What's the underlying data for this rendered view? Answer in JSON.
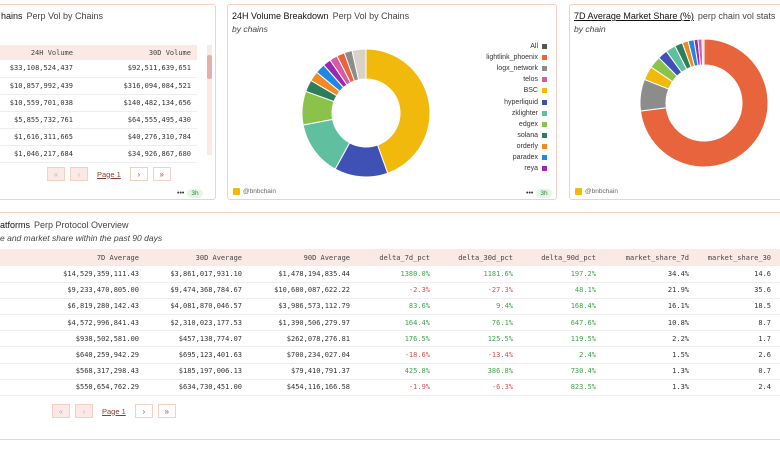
{
  "panel1": {
    "title": "hains",
    "subtitle": "Perp Vol by Chains",
    "columns": [
      "24H Volume",
      "30D Volume"
    ],
    "rows": [
      [
        "$33,108,524,437",
        "$92,511,639,651"
      ],
      [
        "$10,857,992,439",
        "$316,094,084,521"
      ],
      [
        "$10,559,701,038",
        "$140,482,134,656"
      ],
      [
        "$5,855,732,761",
        "$64,555,495,430"
      ],
      [
        "$1,616,311,665",
        "$40,276,310,784"
      ],
      [
        "$1,046,217,684",
        "$34,926,867,680"
      ]
    ],
    "pager": {
      "first": "«",
      "prev": "‹",
      "page": "Page 1",
      "next": "›",
      "last": "»"
    },
    "footer_dots": "•••",
    "footer_time": "3h"
  },
  "panel2": {
    "title": "24H Volume Breakdown",
    "title_sub": "Perp Vol by Chains",
    "subtitle": "by chains",
    "legend": [
      {
        "label": "All",
        "color": "#555555"
      },
      {
        "label": "lightlink_phoenix",
        "color": "#e8643c"
      },
      {
        "label": "logx_network",
        "color": "#8c8c8c"
      },
      {
        "label": "telos",
        "color": "#d65aa8"
      },
      {
        "label": "BSC",
        "color": "#f0b90b"
      },
      {
        "label": "hyperliquid",
        "color": "#3f51b5"
      },
      {
        "label": "zklighter",
        "color": "#5fbf9f"
      },
      {
        "label": "edgex",
        "color": "#8bc34a"
      },
      {
        "label": "solana",
        "color": "#2e7d5b"
      },
      {
        "label": "orderly",
        "color": "#f08a24"
      },
      {
        "label": "paradex",
        "color": "#1e88e5"
      },
      {
        "label": "reya",
        "color": "#9c27b0"
      }
    ],
    "brand": "@bnbchain",
    "footer_dots": "•••",
    "footer_time": "3h"
  },
  "panel3": {
    "title": "7D Average Market Share (%)",
    "title_sub": "perp chain vol stats",
    "subtitle": "by chain",
    "brand": "@bnbchain"
  },
  "chart_data": [
    {
      "type": "pie",
      "title": "24H Volume Breakdown",
      "subtitle": "by chains",
      "donut": true,
      "slices": [
        {
          "label": "BSC",
          "value": 44.5,
          "color": "#f0b90b"
        },
        {
          "label": "hyperliquid",
          "value": 13.5,
          "color": "#3f51b5"
        },
        {
          "label": "zklighter",
          "value": 14.0,
          "color": "#5fbf9f"
        },
        {
          "label": "edgex",
          "value": 8.5,
          "color": "#8bc34a"
        },
        {
          "label": "solana",
          "value": 3.0,
          "color": "#2e7d5b"
        },
        {
          "label": "orderly",
          "value": 2.5,
          "color": "#f08a24"
        },
        {
          "label": "paradex",
          "value": 2.5,
          "color": "#1e88e5"
        },
        {
          "label": "reya",
          "value": 2.0,
          "color": "#9c27b0"
        },
        {
          "label": "telos",
          "value": 2.0,
          "color": "#d65aa8"
        },
        {
          "label": "lightlink_phoenix",
          "value": 2.0,
          "color": "#e8643c"
        },
        {
          "label": "logx_network",
          "value": 2.0,
          "color": "#8c8c8c"
        },
        {
          "label": "All",
          "value": 3.5,
          "color": "#d9d2c8"
        }
      ]
    },
    {
      "type": "pie",
      "title": "7D Average Market Share (%)",
      "subtitle": "by chain",
      "donut": true,
      "slices": [
        {
          "label": "lightlink_phoenix",
          "value": 73.0,
          "color": "#e8643c"
        },
        {
          "label": "logx_network",
          "value": 8.0,
          "color": "#8c8c8c"
        },
        {
          "label": "BSC",
          "value": 3.5,
          "color": "#f0b90b"
        },
        {
          "label": "edgex",
          "value": 3.0,
          "color": "#8bc34a"
        },
        {
          "label": "hyperliquid",
          "value": 2.5,
          "color": "#3f51b5"
        },
        {
          "label": "zklighter",
          "value": 2.5,
          "color": "#5fbf9f"
        },
        {
          "label": "solana",
          "value": 2.0,
          "color": "#2e7d5b"
        },
        {
          "label": "orderly",
          "value": 1.5,
          "color": "#f08a24"
        },
        {
          "label": "paradex",
          "value": 1.5,
          "color": "#1e88e5"
        },
        {
          "label": "reya",
          "value": 1.0,
          "color": "#9c27b0"
        },
        {
          "label": "telos",
          "value": 1.0,
          "color": "#d65aa8"
        },
        {
          "label": "All",
          "value": 0.5,
          "color": "#d9d2c8"
        }
      ]
    }
  ],
  "bottom": {
    "title": "atforms",
    "title_sub": "Perp Protocol Overview",
    "subtitle": "e and market share within the past 90 days",
    "columns": [
      "7D Average",
      "30D Average",
      "90D Average",
      "delta_7d_pct",
      "delta_30d_pct",
      "delta_90d_pct",
      "market_share_7d",
      "market_share_30"
    ],
    "rows": [
      [
        "$14,529,359,111.43",
        "$3,861,017,931.10",
        "$1,478,194,835.44",
        "1380.0%",
        "1181.6%",
        "197.2%",
        "34.4%",
        "14.6"
      ],
      [
        "$9,233,470,805.00",
        "$9,474,368,784.67",
        "$10,680,087,622.22",
        "-2.3%",
        "-27.3%",
        "48.1%",
        "21.9%",
        "35.6"
      ],
      [
        "$6,819,280,142.43",
        "$4,081,870,046.57",
        "$3,986,573,112.79",
        "83.6%",
        "9.4%",
        "168.4%",
        "16.1%",
        "18.5"
      ],
      [
        "$4,572,996,841.43",
        "$2,310,023,177.53",
        "$1,390,506,279.97",
        "164.4%",
        "76.1%",
        "647.6%",
        "10.8%",
        "8.7"
      ],
      [
        "$938,502,581.00",
        "$457,138,774.07",
        "$262,078,276.81",
        "176.5%",
        "125.5%",
        "119.5%",
        "2.2%",
        "1.7"
      ],
      [
        "$640,259,942.29",
        "$695,123,401.63",
        "$700,234,027.04",
        "-18.6%",
        "-13.4%",
        "2.4%",
        "1.5%",
        "2.6"
      ],
      [
        "$568,317,298.43",
        "$185,197,006.13",
        "$79,410,791.37",
        "425.8%",
        "386.8%",
        "730.4%",
        "1.3%",
        "0.7"
      ],
      [
        "$550,654,762.29",
        "$634,730,451.00",
        "$454,116,166.58",
        "-1.9%",
        "-6.3%",
        "823.5%",
        "1.3%",
        "2.4"
      ]
    ],
    "pager": {
      "first": "«",
      "prev": "‹",
      "page": "Page 1",
      "next": "›",
      "last": "»"
    }
  }
}
